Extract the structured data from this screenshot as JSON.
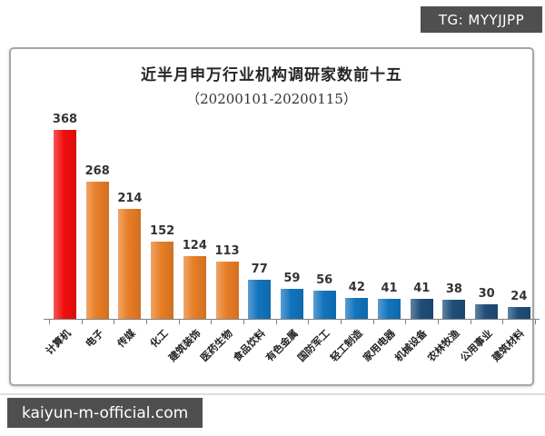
{
  "page": {
    "background": "#ffffff"
  },
  "tg_badge": {
    "text": "TG: MYYJJPP",
    "bg": "#4f4f4f",
    "fg": "#ffffff"
  },
  "watermark": {
    "text": "kaiyun-m-official.com",
    "bg": "#4f4f4f",
    "fg": "#ffffff"
  },
  "palette": {
    "red": "#f20d0d",
    "orange": "#e87d26",
    "blue": "#1274bd",
    "navy": "#1f4e79"
  },
  "chart_data": {
    "type": "bar",
    "title": "近半月申万行业机构调研家数前十五",
    "subtitle": "（20200101-20200115）",
    "categories": [
      "计算机",
      "电子",
      "传媒",
      "化工",
      "建筑装饰",
      "医药生物",
      "食品饮料",
      "有色金属",
      "国防军工",
      "轻工制造",
      "家用电器",
      "机械设备",
      "农林牧渔",
      "公用事业",
      "建筑材料"
    ],
    "values": [
      368,
      268,
      214,
      152,
      124,
      113,
      77,
      59,
      56,
      42,
      41,
      41,
      38,
      30,
      24
    ],
    "bar_colors": [
      "#f20d0d",
      "#e87d26",
      "#e87d26",
      "#e87d26",
      "#e87d26",
      "#e87d26",
      "#1274bd",
      "#1274bd",
      "#1274bd",
      "#1274bd",
      "#1274bd",
      "#1f4e79",
      "#1f4e79",
      "#1f4e79",
      "#1f4e79"
    ],
    "xlabel": "",
    "ylabel": "",
    "ylim": [
      0,
      368
    ],
    "grid": false,
    "legend": false,
    "value_labels": true
  }
}
